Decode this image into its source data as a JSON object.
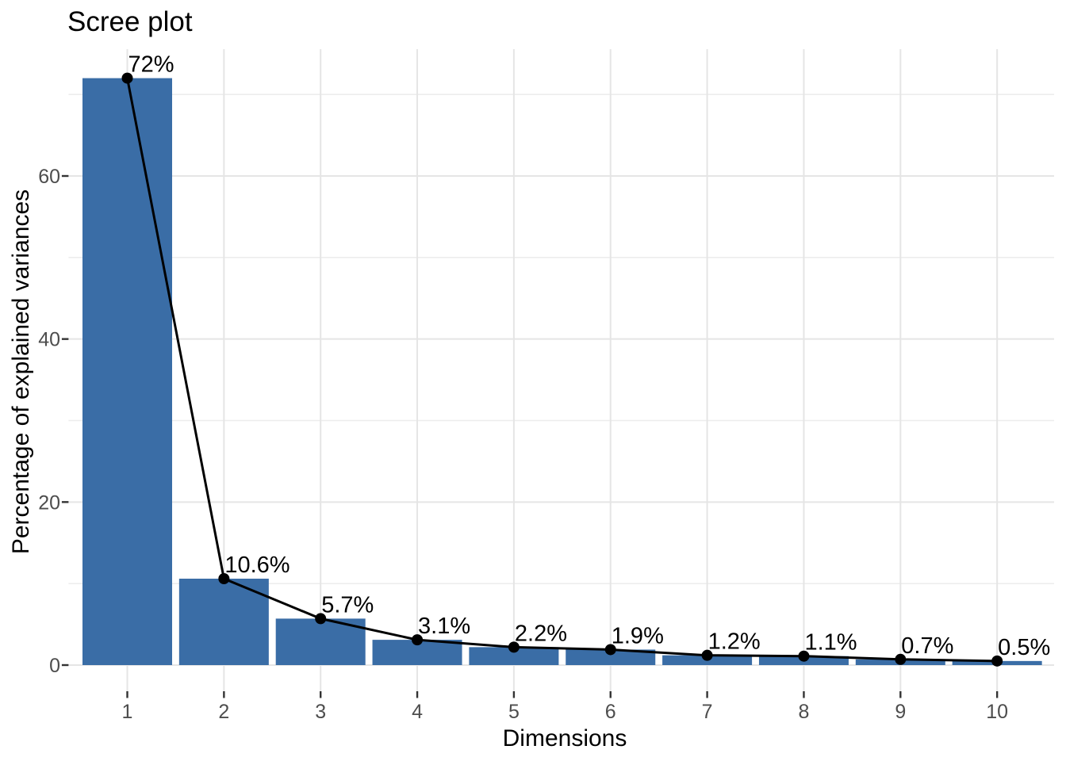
{
  "figure": {
    "title": "Scree plot"
  },
  "chart_data": {
    "type": "bar",
    "overlay": [
      "line",
      "points",
      "value-labels"
    ],
    "title": "Scree plot",
    "xlabel": "Dimensions",
    "ylabel": "Percentage of explained variances",
    "categories": [
      "1",
      "2",
      "3",
      "4",
      "5",
      "6",
      "7",
      "8",
      "9",
      "10"
    ],
    "values": [
      72,
      10.6,
      5.7,
      3.1,
      2.2,
      1.9,
      1.2,
      1.1,
      0.7,
      0.5
    ],
    "value_labels": [
      "72%",
      "10.6%",
      "5.7%",
      "3.1%",
      "2.2%",
      "1.9%",
      "1.2%",
      "1.1%",
      "0.7%",
      "0.5%"
    ],
    "y_ticks": [
      0,
      20,
      40,
      60
    ],
    "y_minor_gridlines": [
      10,
      30,
      50,
      70
    ],
    "ylim": [
      -3.6,
      75.6
    ],
    "grid": "on",
    "legend": "none",
    "colors": {
      "bar_fill": "#3A6DA6",
      "line": "#000000",
      "point": "#000000",
      "grid_major": "#E5E5E5",
      "grid_minor": "#EDEDED",
      "tick_mark": "#333333",
      "tick_text": "#4D4D4D",
      "text": "#000000",
      "background": "#FFFFFF"
    }
  }
}
